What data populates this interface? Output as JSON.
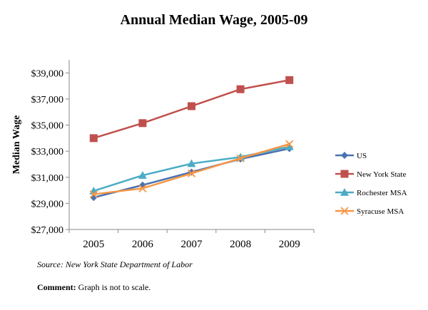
{
  "chart_data": {
    "type": "line",
    "title": "Annual Median Wage, 2005-09",
    "xlabel": "",
    "ylabel": "Median Wage",
    "x": [
      "2005",
      "2006",
      "2007",
      "2008",
      "2009"
    ],
    "ylim": [
      27000,
      40000
    ],
    "yticks": [
      27000,
      29000,
      31000,
      33000,
      35000,
      37000,
      39000
    ],
    "ytick_labels": [
      "$27,000",
      "$29,000",
      "$31,000",
      "$33,000",
      "$35,000",
      "$37,000",
      "$39,000"
    ],
    "grid": false,
    "legend_position": "right",
    "series": [
      {
        "name": "US",
        "values": [
          29450,
          30400,
          31400,
          32400,
          33200
        ],
        "color": "#4a72b0",
        "marker": "diamond"
      },
      {
        "name": "New York State",
        "values": [
          34000,
          35150,
          36450,
          37750,
          38450
        ],
        "color": "#c0504d",
        "marker": "square"
      },
      {
        "name": "Rochester MSA",
        "values": [
          29950,
          31150,
          32050,
          32550,
          33350
        ],
        "color": "#4bacc6",
        "marker": "triangle"
      },
      {
        "name": "Syracuse MSA",
        "values": [
          29700,
          30150,
          31300,
          32450,
          33550
        ],
        "color": "#f79646",
        "marker": "x"
      }
    ]
  },
  "source": "Source: New York State Department of Labor",
  "comment": {
    "label": "Comment:",
    "text": "Graph is not to scale."
  }
}
